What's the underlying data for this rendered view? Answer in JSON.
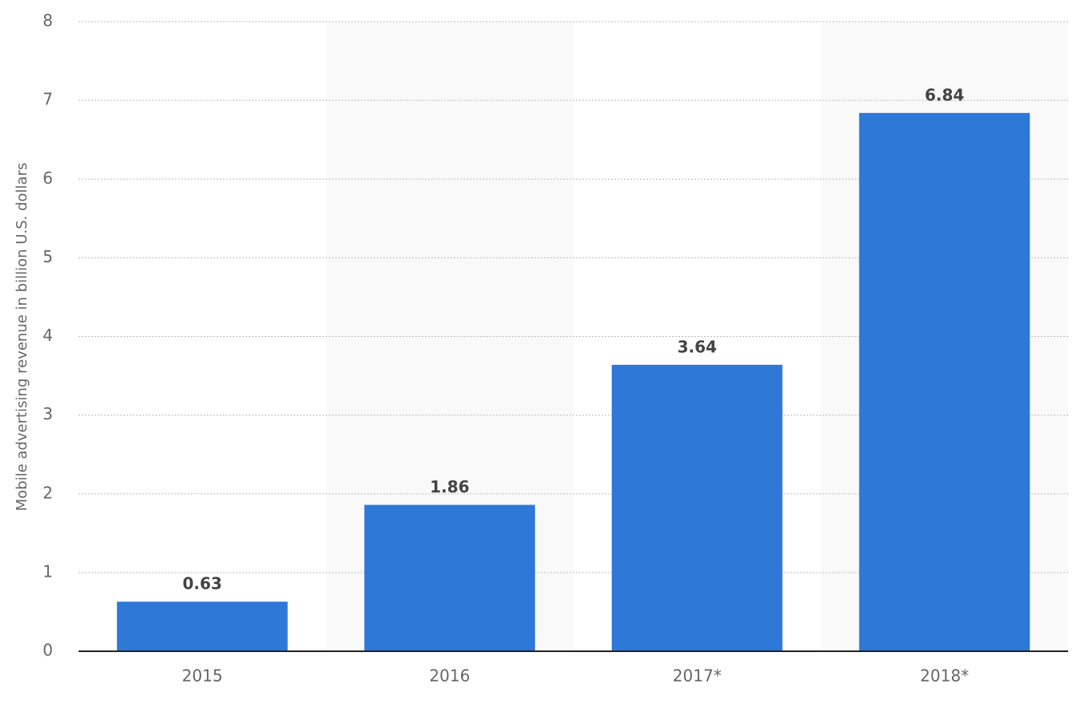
{
  "chart_data": {
    "type": "bar",
    "y_label": "Mobile advertising revenue in billion U.S. dollars",
    "categories": [
      "2015",
      "2016",
      "2017*",
      "2018*"
    ],
    "values": [
      0.63,
      1.86,
      3.64,
      6.84
    ],
    "color": "#2e78d8",
    "ylim": [
      0,
      8
    ],
    "yticks": [
      0,
      1,
      2,
      3,
      4,
      5,
      6,
      7,
      8
    ],
    "grid": true
  }
}
